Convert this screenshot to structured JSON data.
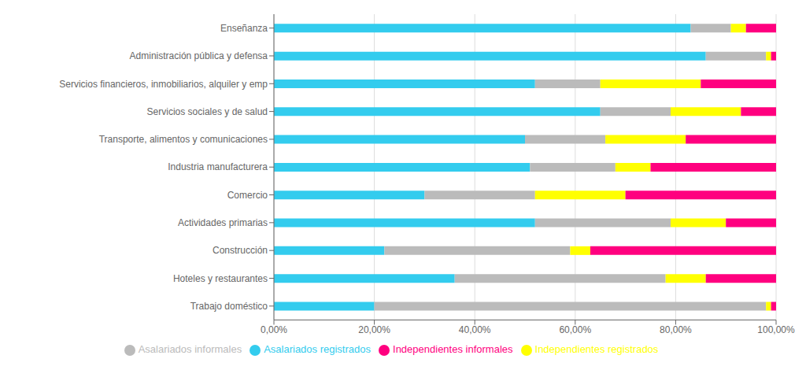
{
  "chart_data": {
    "type": "bar",
    "orientation": "horizontal",
    "stacked": true,
    "grid": true,
    "legend": "bottom",
    "categories": [
      "Enseñanza",
      "Administración pública y defensa",
      "Servicios financieros, inmobiliarios, alquiler y emp",
      "Servicios sociales y de salud",
      "Transporte, alimentos y comunicaciones",
      "Industria manufacturera",
      "Comercio",
      "Actividades primarias",
      "Construcción",
      "Hoteles y restaurantes",
      "Trabajo doméstico"
    ],
    "series": [
      {
        "name": "Asalariados registrados",
        "color": "#33CCEE",
        "values": [
          83,
          86,
          52,
          65,
          50,
          51,
          30,
          52,
          22,
          36,
          20
        ]
      },
      {
        "name": "Asalariados informales",
        "color": "#BBBBBB",
        "values": [
          8,
          12,
          13,
          14,
          16,
          17,
          22,
          27,
          37,
          42,
          78
        ]
      },
      {
        "name": "Independientes registrados",
        "color": "#FFFF00",
        "values": [
          3,
          1,
          20,
          14,
          16,
          7,
          18,
          11,
          4,
          8,
          1
        ]
      },
      {
        "name": "Independientes informales",
        "color": "#FF007F",
        "values": [
          6,
          1,
          15,
          7,
          18,
          25,
          30,
          10,
          37,
          14,
          1
        ]
      }
    ],
    "xlim": [
      0,
      100
    ],
    "xticks": [
      {
        "value": 0,
        "label": "0,00%"
      },
      {
        "value": 20,
        "label": "20,00%"
      },
      {
        "value": 40,
        "label": "40,00%"
      },
      {
        "value": 60,
        "label": "60,00%"
      },
      {
        "value": 80,
        "label": "80,00%"
      },
      {
        "value": 100,
        "label": "100,00%"
      }
    ]
  }
}
